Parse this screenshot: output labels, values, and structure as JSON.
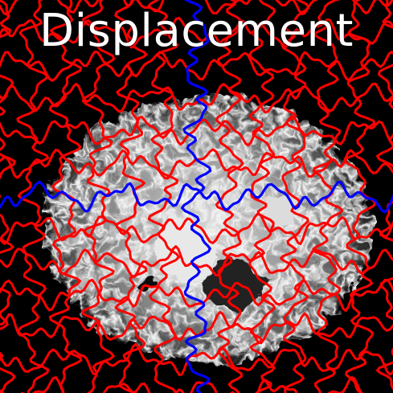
{
  "title": "Displacement",
  "colors": {
    "background": "#000000",
    "grid": "#ff0000",
    "center_axis": "#0000ff",
    "title": "#ffffff"
  },
  "grid_cells": 12
}
